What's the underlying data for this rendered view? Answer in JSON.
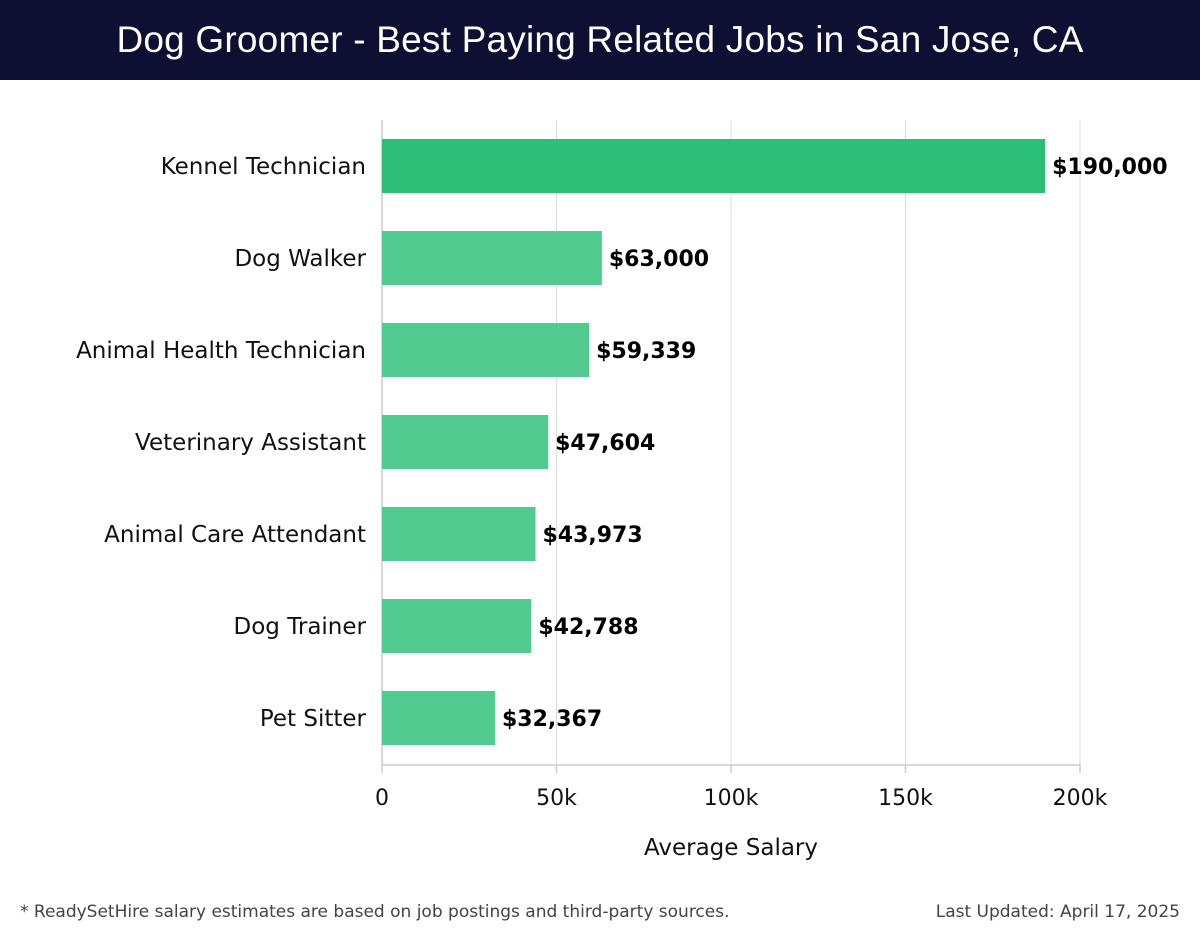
{
  "header": {
    "title": "Dog Groomer - Best Paying Related Jobs in San Jose, CA"
  },
  "chart_data": {
    "type": "bar",
    "orientation": "horizontal",
    "title": "Dog Groomer - Best Paying Related Jobs in San Jose, CA",
    "xlabel": "Average Salary",
    "ylabel": "",
    "categories": [
      "Kennel Technician",
      "Dog Walker",
      "Animal Health Technician",
      "Veterinary Assistant",
      "Animal Care Attendant",
      "Dog Trainer",
      "Pet Sitter"
    ],
    "values": [
      190000,
      63000,
      59339,
      47604,
      43973,
      42788,
      32367
    ],
    "value_labels": [
      "$190,000",
      "$63,000",
      "$59,339",
      "$47,604",
      "$43,973",
      "$42,788",
      "$32,367"
    ],
    "xlim": [
      0,
      200000
    ],
    "xticks": [
      0,
      50000,
      100000,
      150000,
      200000
    ],
    "xtick_labels": [
      "0",
      "50k",
      "100k",
      "150k",
      "200k"
    ],
    "grid": true,
    "colors": {
      "highlight": "#2dbe78",
      "bar": "#52cb90",
      "grid": "#dddddd",
      "axis": "#cccccc",
      "header_bg": "#0d0f33"
    }
  },
  "footer": {
    "note": "* ReadySetHire salary estimates are based on job postings and third-party sources.",
    "updated": "Last Updated: April 17, 2025"
  }
}
